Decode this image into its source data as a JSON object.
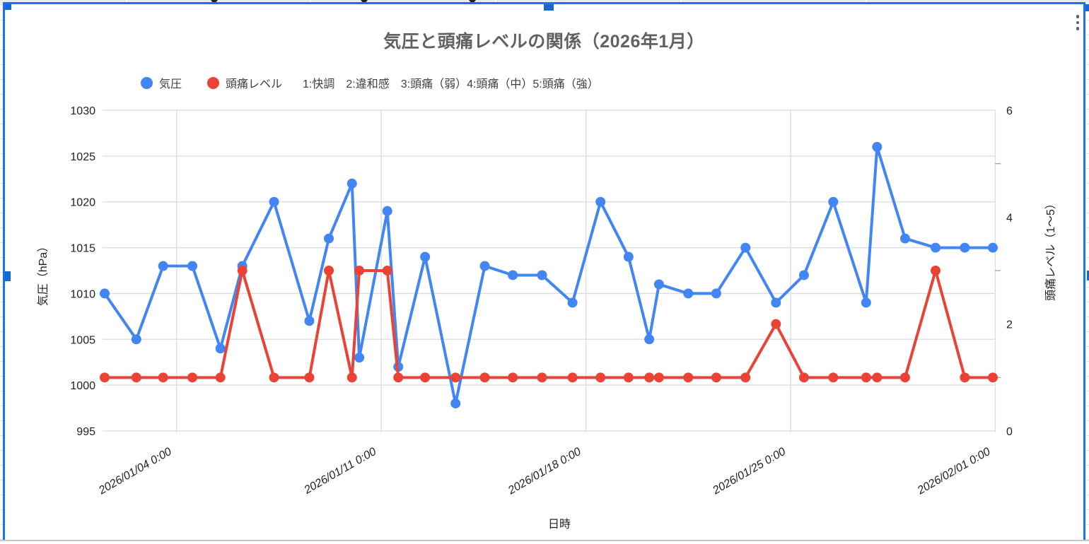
{
  "chart_card": {
    "title": "気圧と頭痛レベルの関係（2026年1月）",
    "legend": {
      "items": [
        {
          "label": "気圧",
          "color": "#4285f4"
        },
        {
          "label": "頭痛レベル",
          "color": "#ea4335"
        }
      ],
      "note": "1:快調　2:違和感　3:頭痛（弱）4:頭痛（中）5:頭痛（強）"
    },
    "menu_icon": "vertical-ellipsis"
  },
  "colors": {
    "pressure_series": "#4285f4",
    "headache_series": "#ea4335",
    "selection_border": "#1a73e8",
    "gridline": "#dadce0",
    "title_text": "#616161",
    "tick_text": "#202124"
  },
  "chart_data": {
    "type": "line",
    "title": "気圧と頭痛レベルの関係（2026年1月）",
    "x_label": "日時",
    "y_left_label": "気圧（hPa）",
    "y_right_label": "頭痛レベル（1〜5）",
    "legend_position": "top-left",
    "grid": true,
    "y_left_range": [
      995,
      1030
    ],
    "y_left_ticks": [
      995,
      1000,
      1005,
      1010,
      1015,
      1020,
      1025,
      1030
    ],
    "y_right_range": [
      0,
      6
    ],
    "y_right_ticks": [
      0,
      2,
      4,
      6
    ],
    "y_right_minor_ticks": [
      1,
      3,
      5
    ],
    "x_tick_labels": [
      "2026/01/04 0:00",
      "2026/01/11 0:00",
      "2026/01/18 0:00",
      "2026/01/25 0:00",
      "2026/02/01 0:00"
    ],
    "x_tick_days_from_jan1": [
      3,
      10,
      17,
      24,
      31
    ],
    "x_datetimes_estimated": [
      "2026/01/01 13:00",
      "2026/01/02 15:00",
      "2026/01/03 13:00",
      "2026/01/04 13:00",
      "2026/01/05 12:00",
      "2026/01/06 06:00",
      "2026/01/07 08:00",
      "2026/01/08 13:00",
      "2026/01/09 05:00",
      "2026/01/10 00:00",
      "2026/01/10 06:00",
      "2026/01/11 05:00",
      "2026/01/11 14:00",
      "2026/01/12 12:00",
      "2026/01/13 13:00",
      "2026/01/14 13:00",
      "2026/01/15 12:00",
      "2026/01/16 12:00",
      "2026/01/17 13:00",
      "2026/01/18 12:00",
      "2026/01/19 11:00",
      "2026/01/20 04:00",
      "2026/01/20 12:00",
      "2026/01/21 12:00",
      "2026/01/22 11:00",
      "2026/01/23 11:00",
      "2026/01/24 12:00",
      "2026/01/25 11:00",
      "2026/01/26 11:00",
      "2026/01/27 14:00",
      "2026/01/27 23:00",
      "2026/01/28 22:00",
      "2026/01/29 23:00",
      "2026/01/30 23:00",
      "2026/01/31 22:00"
    ],
    "series": [
      {
        "name": "気圧",
        "axis": "left",
        "color": "#4285f4",
        "values": [
          1010,
          1005,
          1013,
          1013,
          1004,
          1013,
          1020,
          1007,
          1016,
          1022,
          1003,
          1019,
          1002,
          1014,
          998,
          1013,
          1012,
          1012,
          1009,
          1020,
          1014,
          1005,
          1011,
          1010,
          1010,
          1015,
          1009,
          1012,
          1020,
          1009,
          1026,
          1016,
          1015,
          1015,
          1015
        ]
      },
      {
        "name": "頭痛レベル",
        "axis": "right",
        "color": "#ea4335",
        "values": [
          1,
          1,
          1,
          1,
          1,
          3,
          1,
          1,
          3,
          1,
          3,
          3,
          1,
          1,
          1,
          1,
          1,
          1,
          1,
          1,
          1,
          1,
          1,
          1,
          1,
          1,
          2,
          1,
          1,
          1,
          1,
          1,
          3,
          1,
          1
        ]
      }
    ]
  }
}
